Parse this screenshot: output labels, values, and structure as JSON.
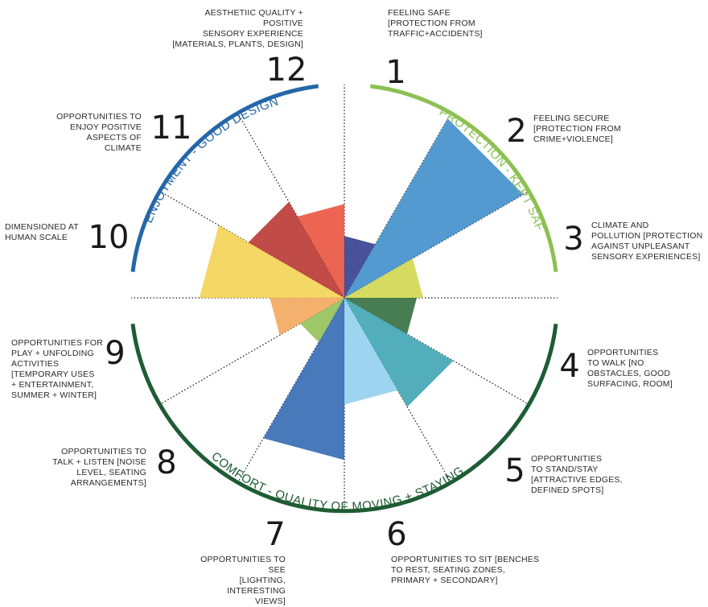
{
  "criteria": [
    {
      "num": "1",
      "text": "FEELING SAFE\n[PROTECTION FROM\nTRAFFIC+ACCIDENTS]",
      "color": "#2d3a8c",
      "r": 0.29
    },
    {
      "num": "2",
      "text": "FEELING SECURE\n[PROTECTION FROM\nCRIME+VIOLENCE]",
      "color": "#3a8cc8",
      "r": 0.97
    },
    {
      "num": "3",
      "text": "CLIMATE AND\nPOLLUTION [PROTECTION\nAGAINST UNPLEASANT\nSENSORY EXPERIENCES]",
      "color": "#cfd64a",
      "r": 0.37
    },
    {
      "num": "4",
      "text": "OPPORTUNITIES\nTO WALK  [NO\nOBSTACLES, GOOD\nSURFACING, ROOM]",
      "color": "#2f6b3c",
      "r": 0.34
    },
    {
      "num": "5",
      "text": "OPPORTUNITIES\nTO STAND/STAY\n[ATTRACTIVE EDGES,\nDEFINED SPOTS]",
      "color": "#3aa3b0",
      "r": 0.59
    },
    {
      "num": "6",
      "text": "OPPORTUNITIES TO SIT [BENCHES\nTO REST, SEATING ZONES,\nPRIMARY + SECONDARY]",
      "color": "#8fcfee",
      "r": 0.5
    },
    {
      "num": "7",
      "text": "OPPORTUNITIES TO SEE\n[LIGHTING, INTERESTING\nVIEWS]",
      "color": "#2f67b0",
      "r": 0.76
    },
    {
      "num": "8",
      "text": "OPPORTUNITIES TO\nTALK + LISTEN [NOISE\nLEVEL, SEATING\nARRANGEMENTS]",
      "color": "#8fbf54",
      "r": 0.24
    },
    {
      "num": "9",
      "text": "OPPORTUNITIES  FOR\nPLAY + UNFOLDING\nACTIVITIES\n[TEMPORARY USES\n+ ENTERTAINMENT,\nSUMMER + WINTER]",
      "color": "#f2a65a",
      "r": 0.35
    },
    {
      "num": "10",
      "text": "DIMENSIONED AT\nHUMAN SCALE",
      "color": "#f3d24e",
      "r": 0.68
    },
    {
      "num": "11",
      "text": "OPPORTUNITIES TO\nENJOY POSITIVE\nASPECTS OF CLIMATE",
      "color": "#b8322c",
      "r": 0.52
    },
    {
      "num": "12",
      "text": "AESTHETIIC QUALITY + POSITIVE\nSENSORY EXPERIENCE\n[MATERIALS, PLANTS, DESIGN]",
      "color": "#e8503a",
      "r": 0.44
    }
  ],
  "groups": [
    {
      "label": "PROTECTION - KEPT SAFE",
      "color": "#8cc152"
    },
    {
      "label": "COMFORT - QUALITY OF MOVING + STAYING",
      "color": "#1e5c34"
    },
    {
      "label": "ENJOYMENT - GOOD DESIGN",
      "color": "#2467a8"
    }
  ]
}
